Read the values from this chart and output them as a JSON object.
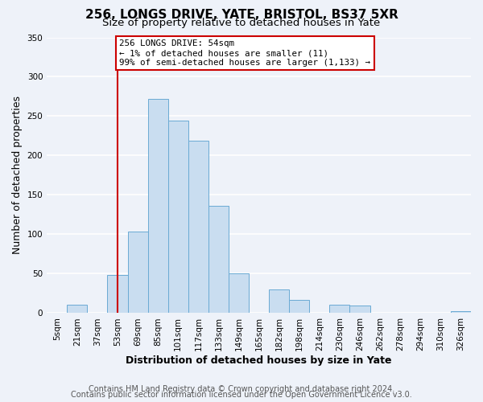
{
  "title": "256, LONGS DRIVE, YATE, BRISTOL, BS37 5XR",
  "subtitle": "Size of property relative to detached houses in Yate",
  "xlabel": "Distribution of detached houses by size in Yate",
  "ylabel": "Number of detached properties",
  "bin_labels": [
    "5sqm",
    "21sqm",
    "37sqm",
    "53sqm",
    "69sqm",
    "85sqm",
    "101sqm",
    "117sqm",
    "133sqm",
    "149sqm",
    "165sqm",
    "182sqm",
    "198sqm",
    "214sqm",
    "230sqm",
    "246sqm",
    "262sqm",
    "278sqm",
    "294sqm",
    "310sqm",
    "326sqm"
  ],
  "bar_heights": [
    0,
    11,
    0,
    48,
    104,
    272,
    244,
    219,
    136,
    50,
    0,
    30,
    17,
    0,
    11,
    10,
    0,
    0,
    0,
    0,
    2
  ],
  "bar_color": "#c9ddf0",
  "bar_edge_color": "#6aaad4",
  "property_line_label": "256 LONGS DRIVE: 54sqm",
  "annotation_line1": "← 1% of detached houses are smaller (11)",
  "annotation_line2": "99% of semi-detached houses are larger (1,133) →",
  "annotation_box_color": "#ffffff",
  "annotation_box_edge": "#cc0000",
  "vline_color": "#cc0000",
  "footer1": "Contains HM Land Registry data © Crown copyright and database right 2024.",
  "footer2": "Contains public sector information licensed under the Open Government Licence v3.0.",
  "ylim": [
    0,
    350
  ],
  "yticks": [
    0,
    50,
    100,
    150,
    200,
    250,
    300,
    350
  ],
  "background_color": "#eef2f9",
  "grid_color": "#ffffff",
  "title_fontsize": 11,
  "subtitle_fontsize": 9.5,
  "axis_label_fontsize": 9,
  "tick_fontsize": 7.5,
  "footer_fontsize": 7
}
